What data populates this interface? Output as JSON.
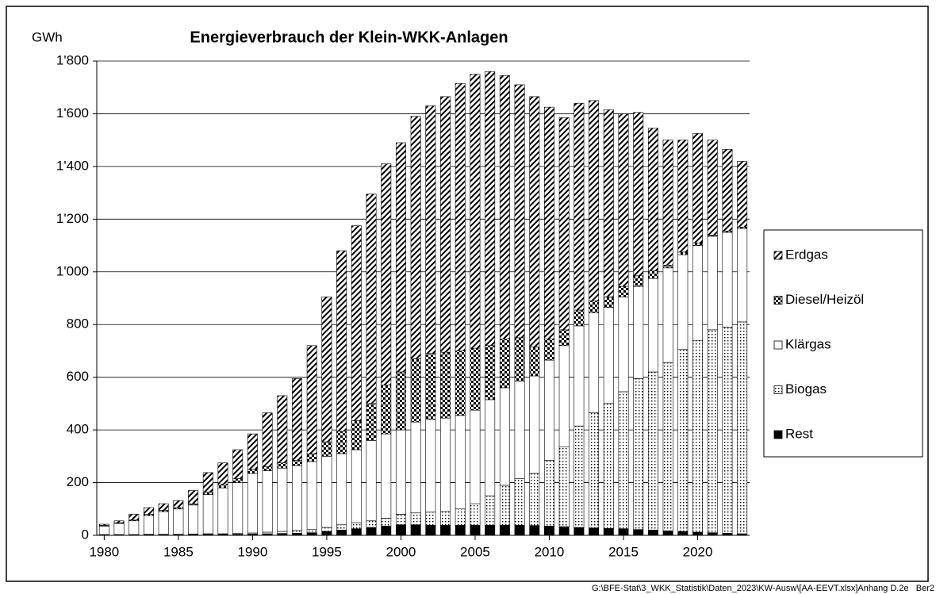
{
  "chart_data": {
    "type": "stacked_bar",
    "title": "Energieverbrauch der Klein-WKK-Anlagen",
    "y_label": "GWh",
    "footer": "G:\\BFE-Stat\\3_WKK_Statistik\\Daten_2023\\KW-Ausw\\[AA-EEVT.xlsx]Anhang D.2e   Ber2",
    "categories": [
      "1980",
      null,
      null,
      null,
      null,
      "1985",
      null,
      null,
      null,
      null,
      "1990",
      null,
      null,
      null,
      null,
      "1995",
      null,
      null,
      null,
      null,
      "2000",
      null,
      null,
      null,
      null,
      "2005",
      null,
      null,
      null,
      null,
      "2010",
      null,
      null,
      null,
      null,
      "2015",
      null,
      null,
      null,
      null,
      "2020",
      null,
      null,
      null
    ],
    "series": [
      {
        "name": "Rest",
        "color": "#000000",
        "pattern": "solid",
        "values": [
          2,
          2,
          2,
          3,
          3,
          3,
          3,
          4,
          4,
          4,
          5,
          6,
          7,
          8,
          10,
          15,
          20,
          25,
          30,
          35,
          40,
          40,
          38,
          38,
          38,
          38,
          38,
          38,
          38,
          37,
          35,
          33,
          30,
          28,
          26,
          25,
          22,
          20,
          17,
          15,
          12,
          10,
          8,
          6
        ]
      },
      {
        "name": "Biogas",
        "color": "#000000",
        "pattern": "dots",
        "values": [
          1,
          1,
          1,
          1,
          1,
          1,
          2,
          2,
          2,
          3,
          4,
          6,
          8,
          10,
          12,
          15,
          20,
          23,
          25,
          30,
          40,
          45,
          50,
          52,
          62,
          82,
          112,
          152,
          177,
          198,
          250,
          302,
          385,
          437,
          474,
          520,
          573,
          600,
          638,
          690,
          728,
          770,
          782,
          804
        ]
      },
      {
        "name": "Klärgas",
        "color": "#ffffff",
        "pattern": "solid",
        "values": [
          32,
          42,
          52,
          71,
          86,
          96,
          110,
          149,
          174,
          193,
          226,
          233,
          240,
          247,
          258,
          270,
          270,
          277,
          305,
          320,
          320,
          345,
          352,
          355,
          355,
          355,
          365,
          370,
          370,
          370,
          380,
          385,
          380,
          380,
          365,
          360,
          350,
          355,
          360,
          360,
          360,
          355,
          360,
          355
        ]
      },
      {
        "name": "Diesel/Heizöl",
        "color": "#000000",
        "pattern": "checker",
        "values": [
          3,
          3,
          3,
          5,
          5,
          5,
          5,
          10,
          15,
          15,
          15,
          15,
          20,
          20,
          30,
          55,
          85,
          110,
          140,
          185,
          220,
          240,
          250,
          250,
          245,
          235,
          205,
          185,
          165,
          110,
          80,
          60,
          60,
          45,
          40,
          40,
          40,
          30,
          10,
          10,
          10,
          5,
          5,
          5
        ]
      },
      {
        "name": "Erdgas",
        "color": "#000000",
        "pattern": "hatch",
        "values": [
          4,
          7,
          22,
          25,
          25,
          27,
          50,
          73,
          80,
          110,
          135,
          205,
          255,
          310,
          410,
          550,
          685,
          740,
          795,
          840,
          870,
          920,
          940,
          970,
          1015,
          1040,
          1040,
          1000,
          960,
          950,
          880,
          805,
          785,
          760,
          710,
          655,
          620,
          540,
          475,
          425,
          415,
          360,
          310,
          250
        ]
      }
    ],
    "ylim": [
      0,
      1800
    ],
    "yticks": [
      0,
      200,
      400,
      600,
      800,
      {
        "value": 1000,
        "label": "1'000"
      },
      {
        "value": 1200,
        "label": "1'200"
      },
      {
        "value": 1400,
        "label": "1'400"
      },
      {
        "value": 1600,
        "label": "1'600"
      },
      {
        "value": 1800,
        "label": "1'800"
      }
    ],
    "grid": true,
    "legend": "right"
  }
}
